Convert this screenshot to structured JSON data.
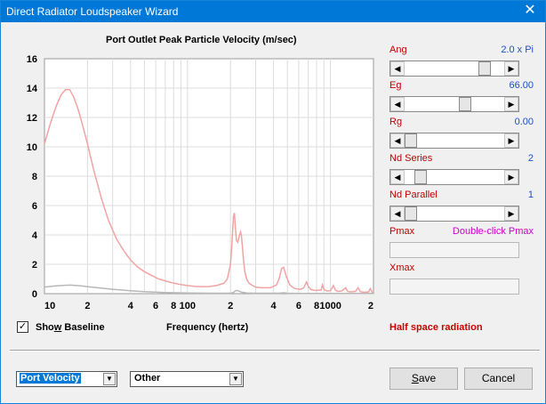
{
  "window": {
    "title": "Direct Radiator Loudspeaker Wizard",
    "close_glyph": "✕"
  },
  "chart_data": {
    "type": "line",
    "title": "Port Outlet Peak Particle Velocity (m/sec)",
    "xlabel": "Frequency (hertz)",
    "ylabel": "",
    "xscale": "log",
    "xlim": [
      10,
      2000
    ],
    "ylim": [
      0,
      16
    ],
    "grid": true,
    "yticks": [
      "0",
      "2",
      "4",
      "6",
      "8",
      "10",
      "12",
      "14",
      "16"
    ],
    "xticks": [
      "10",
      "2",
      "4",
      "6",
      "8",
      "100",
      "2",
      "4",
      "6",
      "8",
      "1000",
      "2"
    ],
    "series": [
      {
        "color": "#f2a3a3",
        "x": [
          10,
          11,
          12,
          13,
          14,
          15,
          16,
          17,
          18,
          20,
          22,
          25,
          28,
          32,
          36,
          40,
          45,
          50,
          56,
          63,
          71,
          80,
          90,
          100,
          112,
          125,
          140,
          160,
          180,
          190,
          200,
          205,
          210,
          213,
          216,
          220,
          225,
          230,
          235,
          238,
          242,
          246,
          252,
          260,
          270,
          285,
          300,
          330,
          380,
          420,
          440,
          455,
          470,
          490,
          520,
          560,
          620,
          650,
          680,
          700,
          730,
          780,
          860,
          880,
          900,
          940,
          1000,
          1050,
          1080,
          1120,
          1200,
          1280,
          1320,
          1380,
          1500,
          1560,
          1620,
          1700,
          1850,
          1900,
          1950,
          2000
        ],
        "y": [
          10.2,
          11.6,
          12.7,
          13.5,
          13.9,
          13.9,
          13.4,
          12.7,
          11.9,
          10.2,
          8.5,
          6.5,
          5.0,
          3.7,
          2.9,
          2.3,
          1.8,
          1.5,
          1.25,
          1.0,
          0.85,
          0.72,
          0.62,
          0.55,
          0.5,
          0.48,
          0.48,
          0.55,
          0.7,
          1.0,
          2.0,
          3.5,
          5.3,
          5.5,
          4.6,
          3.6,
          3.5,
          3.9,
          4.2,
          4.0,
          3.3,
          2.4,
          1.5,
          0.95,
          0.7,
          0.55,
          0.45,
          0.4,
          0.4,
          0.6,
          1.1,
          1.7,
          1.8,
          1.2,
          0.6,
          0.35,
          0.3,
          0.4,
          0.8,
          0.5,
          0.28,
          0.22,
          0.25,
          0.6,
          0.3,
          0.18,
          0.2,
          0.55,
          0.25,
          0.15,
          0.18,
          0.4,
          0.15,
          0.12,
          0.16,
          0.4,
          0.14,
          0.1,
          0.12,
          0.35,
          0.12,
          0.1
        ]
      },
      {
        "color": "#b8b8b8",
        "x": [
          10,
          12,
          14,
          15,
          16,
          18,
          20,
          25,
          30,
          40,
          50,
          70,
          100,
          150,
          200,
          210,
          215,
          220,
          230,
          240,
          260,
          300,
          440,
          470,
          500,
          600,
          800,
          1000,
          2000
        ],
        "y": [
          0.45,
          0.53,
          0.57,
          0.58,
          0.57,
          0.53,
          0.48,
          0.38,
          0.3,
          0.2,
          0.14,
          0.08,
          0.05,
          0.03,
          0.03,
          0.08,
          0.18,
          0.22,
          0.17,
          0.1,
          0.05,
          0.03,
          0.03,
          0.06,
          0.03,
          0.02,
          0.02,
          0.02,
          0.01
        ]
      }
    ]
  },
  "show_baseline": {
    "label_pre": "Sho",
    "label_u": "w",
    "label_post": " Baseline",
    "checked_glyph": "✓",
    "checked": true
  },
  "half_space_text": "Half space radiation",
  "params": [
    {
      "label": "Ang",
      "value": "2.0 x Pi",
      "value_color": "blue",
      "thumb": 0.85,
      "disabled": false
    },
    {
      "label": "Eg",
      "value": "66.00",
      "value_color": "blue",
      "thumb": 0.62,
      "disabled": false
    },
    {
      "label": "Rg",
      "value": "0.00",
      "value_color": "blue",
      "thumb": 0.0,
      "disabled": false
    },
    {
      "label": "Nd  Series",
      "value": "2",
      "value_color": "blue",
      "thumb": 0.11,
      "disabled": false
    },
    {
      "label": "Nd  Parallel",
      "value": "1",
      "value_color": "blue",
      "thumb": 0.0,
      "disabled": false
    },
    {
      "label": "Pmax",
      "value": "Double-click Pmax",
      "value_color": "magenta",
      "thumb": null,
      "disabled": true
    },
    {
      "label": "Xmax",
      "value": "",
      "value_color": "blue",
      "thumb": null,
      "disabled": true
    }
  ],
  "dropdowns": {
    "plot_type": {
      "value": "Port Velocity",
      "selected": true
    },
    "other": {
      "value": "Other",
      "selected": false
    }
  },
  "buttons": {
    "save_pre": "",
    "save_u": "S",
    "save_post": "ave",
    "cancel": "Cancel"
  },
  "arrow_glyphs": {
    "left": "◀",
    "right": "▶",
    "down": "▼"
  }
}
